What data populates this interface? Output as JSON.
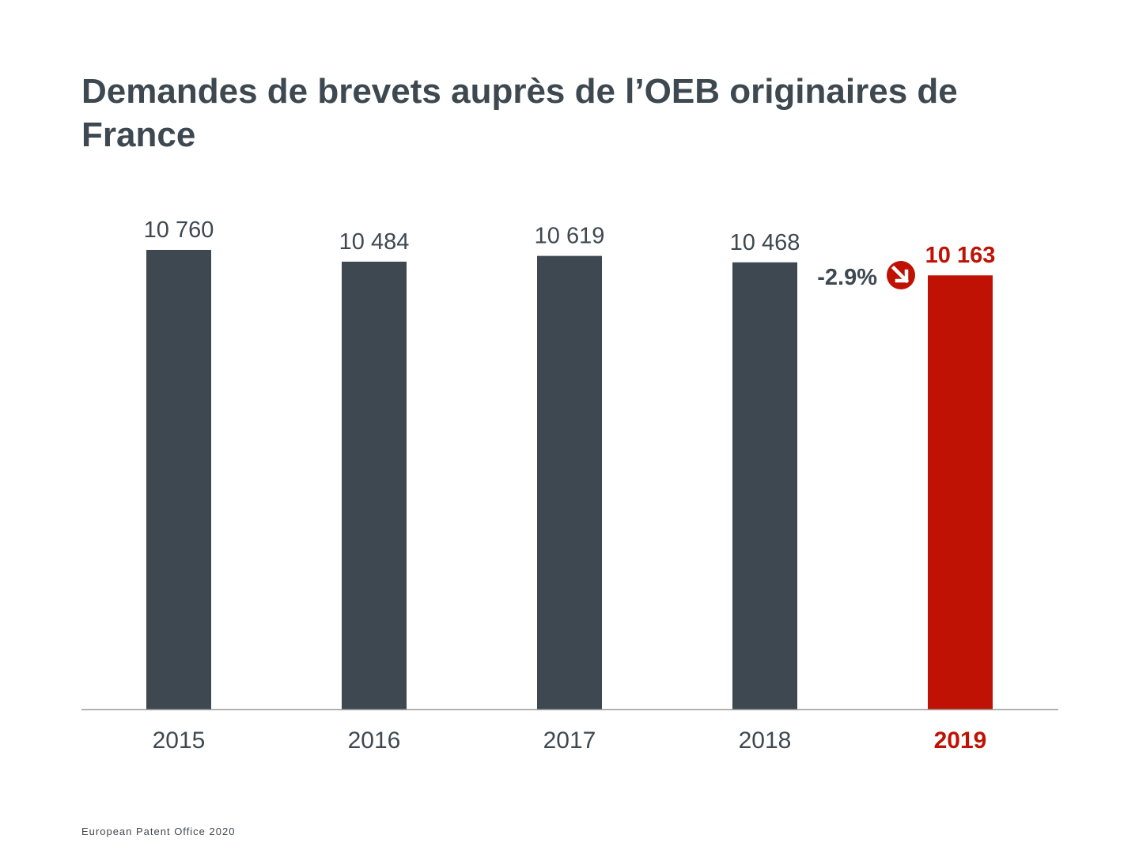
{
  "title": "Demandes de brevets auprès de l’OEB originaires de France",
  "footer": "European Patent Office 2020",
  "colors": {
    "bar": "#3d4850",
    "highlight": "#bf1205",
    "text": "#3d4850",
    "axis": "#a0a0a0"
  },
  "chart_data": {
    "type": "bar",
    "title": "Demandes de brevets auprès de l’OEB originaires de France",
    "xlabel": "",
    "ylabel": "",
    "categories": [
      "2015",
      "2016",
      "2017",
      "2018",
      "2019"
    ],
    "values": [
      10760,
      10484,
      10619,
      10468,
      10163
    ],
    "value_labels": [
      "10 760",
      "10 484",
      "10 619",
      "10 468",
      "10 163"
    ],
    "highlight_index": 4,
    "ylim": [
      0,
      10760
    ],
    "grid": false,
    "annotation": {
      "text": "-2.9%",
      "icon": "arrow-down-right-icon"
    }
  }
}
